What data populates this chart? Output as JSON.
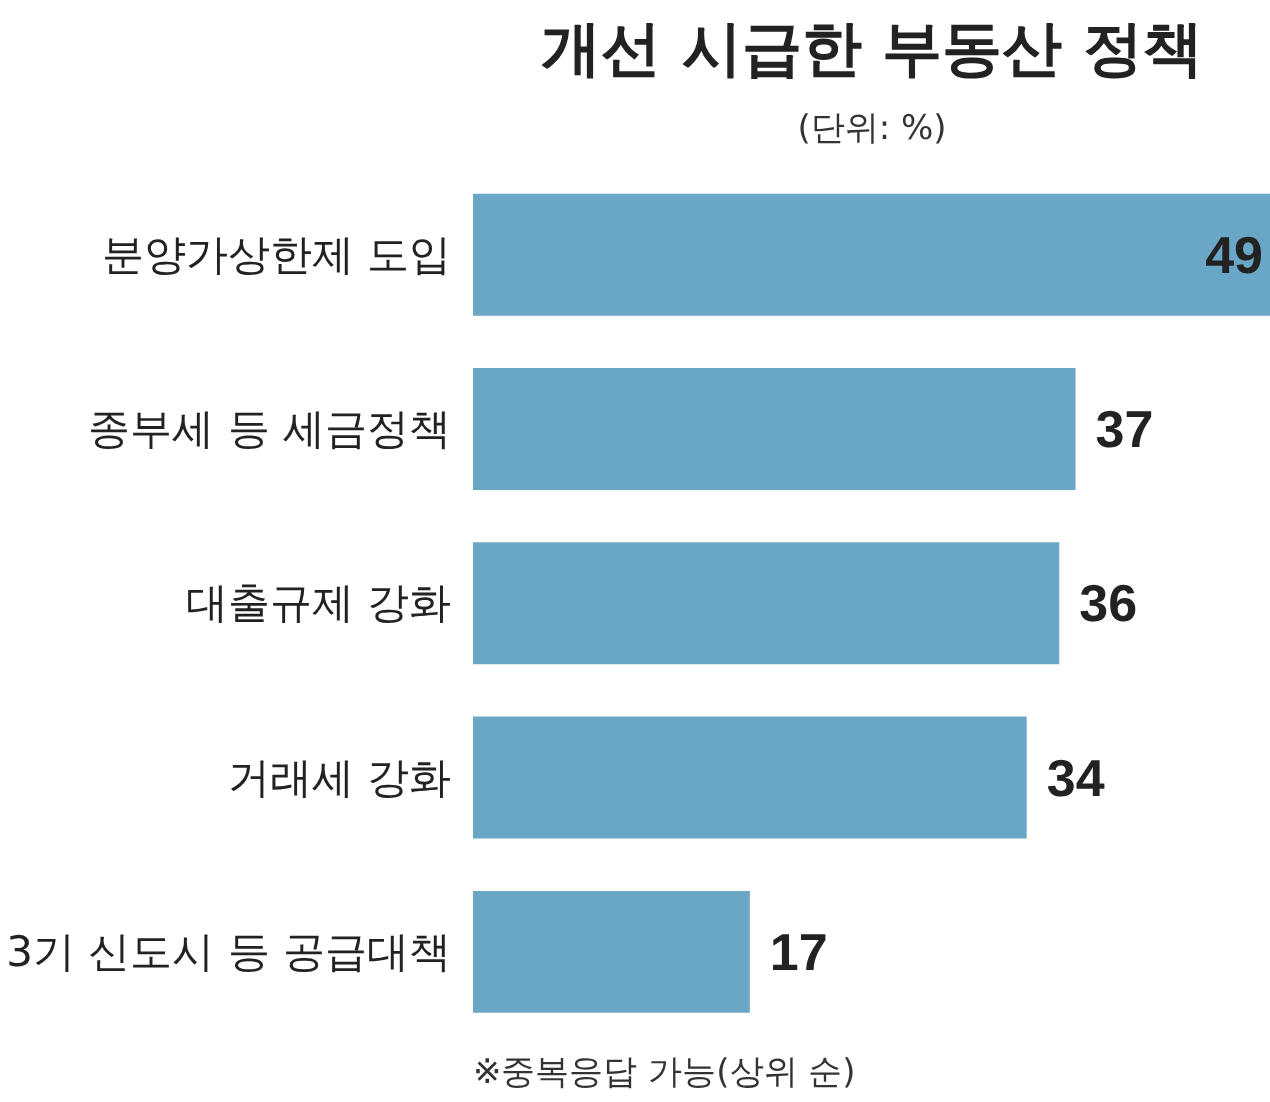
{
  "chart_data": {
    "type": "bar",
    "orientation": "horizontal",
    "title": "개선 시급한 부동산 정책",
    "subtitle": "(단위: %)",
    "categories": [
      "분양가상한제 도입",
      "종부세 등 세금정책",
      "대출규제 강화",
      "거래세 강화",
      "3기 신도시 등 공급대책"
    ],
    "values": [
      49,
      37,
      36,
      34,
      17
    ],
    "color": "#6aa6c6",
    "data_labels": true,
    "grid": false,
    "annotations": [
      "※중복응답 가능(상위 순)"
    ]
  }
}
